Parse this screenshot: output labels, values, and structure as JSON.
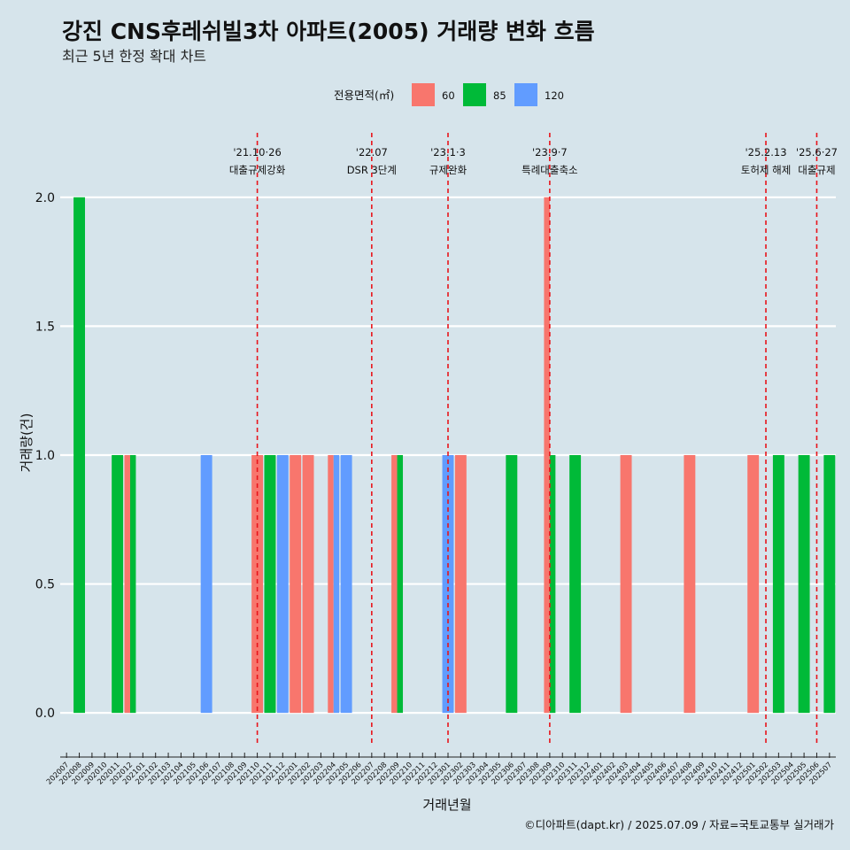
{
  "title": "강진 CNS후레쉬빌3차 아파트(2005) 거래량 변화 흐름",
  "subtitle": "최근 5년 한정 확대 차트",
  "caption": "©디아파트(dapt.kr) / 2025.07.09 / 자료=국토교통부 실거래가",
  "colors": {
    "60": "#f8766d",
    "85": "#00ba38",
    "120": "#619cff",
    "background": "#d6e4eb",
    "event_line": "#e8141b"
  },
  "chart_data": {
    "type": "bar",
    "xlabel": "거래년월",
    "ylabel": "거래량(건)",
    "ylim": [
      -0.13,
      2.25
    ],
    "yticks": [
      0.0,
      0.5,
      1.0,
      1.5,
      2.0
    ],
    "ytick_labels": [
      "0.0",
      "0.5",
      "1.0",
      "1.5",
      "2.0"
    ],
    "grid": true,
    "legend": {
      "title": "전용면적(㎡)",
      "placement": "top",
      "entries": [
        {
          "key": "60",
          "label": "60"
        },
        {
          "key": "85",
          "label": "85"
        },
        {
          "key": "120",
          "label": "120"
        }
      ]
    },
    "categories": [
      "202007",
      "202008",
      "202009",
      "202010",
      "202011",
      "202012",
      "202101",
      "202102",
      "202103",
      "202104",
      "202105",
      "202106",
      "202107",
      "202108",
      "202109",
      "202110",
      "202111",
      "202112",
      "202201",
      "202202",
      "202203",
      "202204",
      "202205",
      "202206",
      "202207",
      "202208",
      "202209",
      "202210",
      "202211",
      "202212",
      "202301",
      "202302",
      "202303",
      "202304",
      "202305",
      "202306",
      "202307",
      "202308",
      "202309",
      "202310",
      "202311",
      "202312",
      "202401",
      "202402",
      "202403",
      "202404",
      "202405",
      "202406",
      "202407",
      "202408",
      "202409",
      "202410",
      "202411",
      "202412",
      "202501",
      "202502",
      "202503",
      "202504",
      "202505",
      "202506",
      "202507"
    ],
    "bars": [
      {
        "month": "202008",
        "groups": [
          {
            "area": "85",
            "value": 2
          }
        ]
      },
      {
        "month": "202011",
        "groups": [
          {
            "area": "85",
            "value": 1
          }
        ]
      },
      {
        "month": "202012",
        "groups": [
          {
            "area": "60",
            "value": 1
          },
          {
            "area": "85",
            "value": 1
          }
        ]
      },
      {
        "month": "202106",
        "groups": [
          {
            "area": "120",
            "value": 1
          }
        ]
      },
      {
        "month": "202110",
        "groups": [
          {
            "area": "60",
            "value": 1
          }
        ]
      },
      {
        "month": "202111",
        "groups": [
          {
            "area": "85",
            "value": 1
          }
        ]
      },
      {
        "month": "202112",
        "groups": [
          {
            "area": "120",
            "value": 1
          }
        ]
      },
      {
        "month": "202201",
        "groups": [
          {
            "area": "60",
            "value": 1
          }
        ]
      },
      {
        "month": "202202",
        "groups": [
          {
            "area": "60",
            "value": 1
          }
        ]
      },
      {
        "month": "202204",
        "groups": [
          {
            "area": "60",
            "value": 1
          },
          {
            "area": "120",
            "value": 1
          }
        ]
      },
      {
        "month": "202205",
        "groups": [
          {
            "area": "120",
            "value": 1
          }
        ]
      },
      {
        "month": "202209",
        "groups": [
          {
            "area": "60",
            "value": 1
          },
          {
            "area": "85",
            "value": 1
          }
        ]
      },
      {
        "month": "202301",
        "groups": [
          {
            "area": "120",
            "value": 1
          }
        ]
      },
      {
        "month": "202302",
        "groups": [
          {
            "area": "60",
            "value": 1
          }
        ]
      },
      {
        "month": "202306",
        "groups": [
          {
            "area": "85",
            "value": 1
          }
        ]
      },
      {
        "month": "202309",
        "groups": [
          {
            "area": "60",
            "value": 2
          },
          {
            "area": "85",
            "value": 1
          }
        ]
      },
      {
        "month": "202311",
        "groups": [
          {
            "area": "85",
            "value": 1
          }
        ]
      },
      {
        "month": "202403",
        "groups": [
          {
            "area": "60",
            "value": 1
          }
        ]
      },
      {
        "month": "202408",
        "groups": [
          {
            "area": "60",
            "value": 1
          }
        ]
      },
      {
        "month": "202501",
        "groups": [
          {
            "area": "60",
            "value": 1
          }
        ]
      },
      {
        "month": "202503",
        "groups": [
          {
            "area": "85",
            "value": 1
          }
        ]
      },
      {
        "month": "202505",
        "groups": [
          {
            "area": "85",
            "value": 1
          }
        ]
      },
      {
        "month": "202507",
        "groups": [
          {
            "area": "85",
            "value": 1
          }
        ]
      }
    ],
    "events": [
      {
        "x": "202110",
        "line1": "'21.10·26",
        "line2": "대출규제강화"
      },
      {
        "x": "202207",
        "line1": "'22.07",
        "line2": "DSR 3단계"
      },
      {
        "x": "202301",
        "line1": "'23.1·3",
        "line2": "규제완화"
      },
      {
        "x": "202309",
        "line1": "'23.9·7",
        "line2": "특례대출축소"
      },
      {
        "x": "202502",
        "line1": "'25.2.13",
        "line2": "토허제 해제"
      },
      {
        "x": "202506",
        "line1": "'25.6·27",
        "line2": "대출규제"
      }
    ]
  }
}
